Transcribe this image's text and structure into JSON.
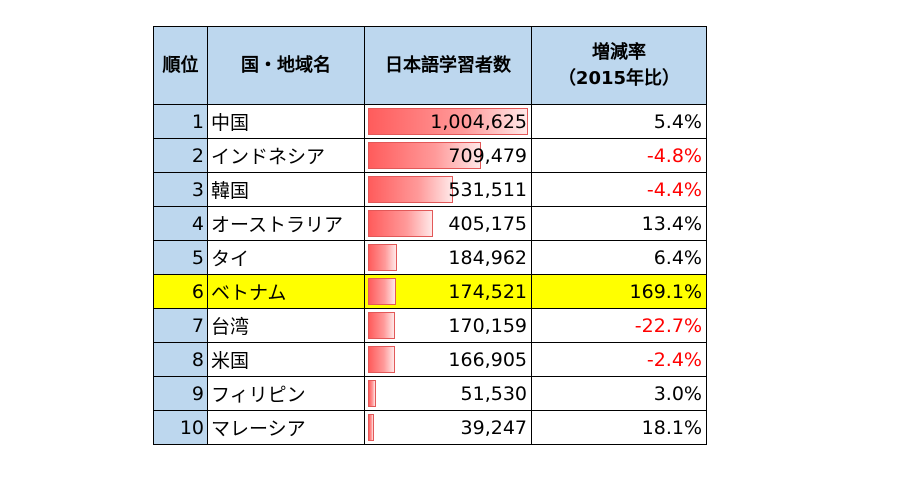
{
  "headers": {
    "rank": "順位",
    "country": "国・地域名",
    "learners": "日本語学習者数",
    "rate_line1": "増減率",
    "rate_line2": "（2015年比）"
  },
  "max_learners": 1004625,
  "rows": [
    {
      "rank": "1",
      "country": "中国",
      "learners": "1,004,625",
      "learners_value": 1004625,
      "rate": "5.4%",
      "negative": false,
      "highlight": false
    },
    {
      "rank": "2",
      "country": "インドネシア",
      "learners": "709,479",
      "learners_value": 709479,
      "rate": "-4.8%",
      "negative": true,
      "highlight": false
    },
    {
      "rank": "3",
      "country": "韓国",
      "learners": "531,511",
      "learners_value": 531511,
      "rate": "-4.4%",
      "negative": true,
      "highlight": false
    },
    {
      "rank": "4",
      "country": "オーストラリア",
      "learners": "405,175",
      "learners_value": 405175,
      "rate": "13.4%",
      "negative": false,
      "highlight": false
    },
    {
      "rank": "5",
      "country": "タイ",
      "learners": "184,962",
      "learners_value": 184962,
      "rate": "6.4%",
      "negative": false,
      "highlight": false
    },
    {
      "rank": "6",
      "country": "ベトナム",
      "learners": "174,521",
      "learners_value": 174521,
      "rate": "169.1%",
      "negative": false,
      "highlight": true
    },
    {
      "rank": "7",
      "country": "台湾",
      "learners": "170,159",
      "learners_value": 170159,
      "rate": "-22.7%",
      "negative": true,
      "highlight": false
    },
    {
      "rank": "8",
      "country": "米国",
      "learners": "166,905",
      "learners_value": 166905,
      "rate": "-2.4%",
      "negative": true,
      "highlight": false
    },
    {
      "rank": "9",
      "country": "フィリピン",
      "learners": "51,530",
      "learners_value": 51530,
      "rate": "3.0%",
      "negative": false,
      "highlight": false
    },
    {
      "rank": "10",
      "country": "マレーシア",
      "learners": "39,247",
      "learners_value": 39247,
      "rate": "18.1%",
      "negative": false,
      "highlight": false
    }
  ],
  "colors": {
    "header_bg": "#bdd7ee",
    "highlight_bg": "#ffff00",
    "negative_text": "#ff0000",
    "bar_fill": "#ff5c5c"
  }
}
